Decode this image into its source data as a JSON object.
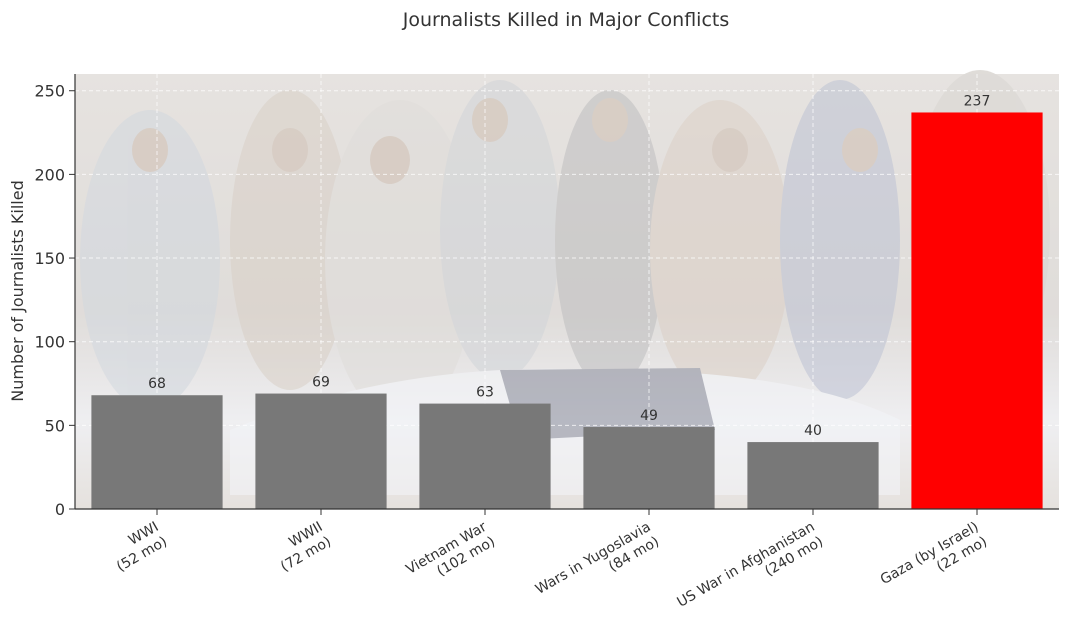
{
  "chart_data": {
    "type": "bar",
    "title": "Journalists Killed in Major Conflicts",
    "xlabel": "",
    "ylabel": "Number of Journalists Killed",
    "ylim": [
      0,
      260
    ],
    "yticks": [
      0,
      50,
      100,
      150,
      200,
      250
    ],
    "grid": true,
    "categories": [
      [
        "WWI",
        "(52 mo)"
      ],
      [
        "WWII",
        "(72 mo)"
      ],
      [
        "Vietnam War",
        "(102 mo)"
      ],
      [
        "Wars in Yugoslavia",
        "(84 mo)"
      ],
      [
        "US War in Afghanistan",
        "(240 mo)"
      ],
      [
        "Gaza (by Israel)",
        "(22 mo)"
      ]
    ],
    "values": [
      68,
      69,
      63,
      49,
      40,
      237
    ],
    "data_labels": [
      "68",
      "69",
      "63",
      "49",
      "40",
      "237"
    ],
    "colors": [
      "#787878",
      "#787878",
      "#787878",
      "#787878",
      "#787878",
      "#ff0000"
    ]
  }
}
